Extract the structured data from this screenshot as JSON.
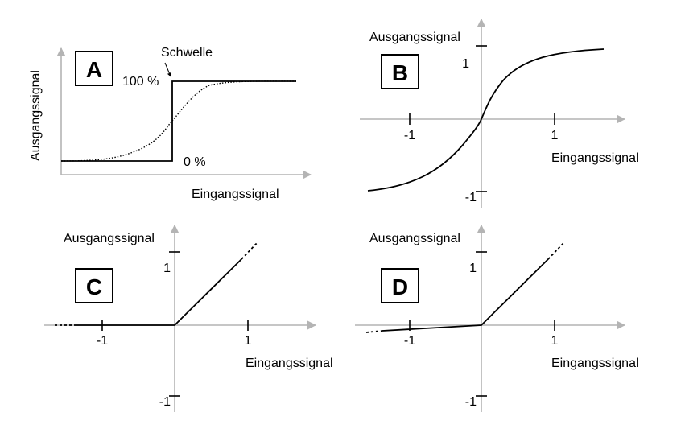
{
  "panels": {
    "A": {
      "letter": "A",
      "x_label": "Eingangssignal",
      "y_label": "Ausgangssignal",
      "threshold_label": "Schwelle",
      "top_level_label": "100 %",
      "bottom_level_label": "0 %",
      "functions": [
        "step",
        "sigmoid"
      ]
    },
    "B": {
      "letter": "B",
      "x_label": "Eingangssignal",
      "y_label": "Ausgangssignal",
      "x_ticks": [
        "-1",
        "1"
      ],
      "y_ticks": [
        "1",
        "-1"
      ],
      "function": "tanh"
    },
    "C": {
      "letter": "C",
      "x_label": "Eingangssignal",
      "y_label": "Ausgangssignal",
      "x_ticks": [
        "-1",
        "1"
      ],
      "y_ticks": [
        "1",
        "-1"
      ],
      "function": "relu"
    },
    "D": {
      "letter": "D",
      "x_label": "Eingangssignal",
      "y_label": "Ausgangssignal",
      "x_ticks": [
        "-1",
        "1"
      ],
      "y_ticks": [
        "1",
        "-1"
      ],
      "function": "leaky-relu"
    }
  },
  "colors": {
    "axis": "#b4b4b4",
    "curve": "#000000",
    "background": "#ffffff"
  }
}
